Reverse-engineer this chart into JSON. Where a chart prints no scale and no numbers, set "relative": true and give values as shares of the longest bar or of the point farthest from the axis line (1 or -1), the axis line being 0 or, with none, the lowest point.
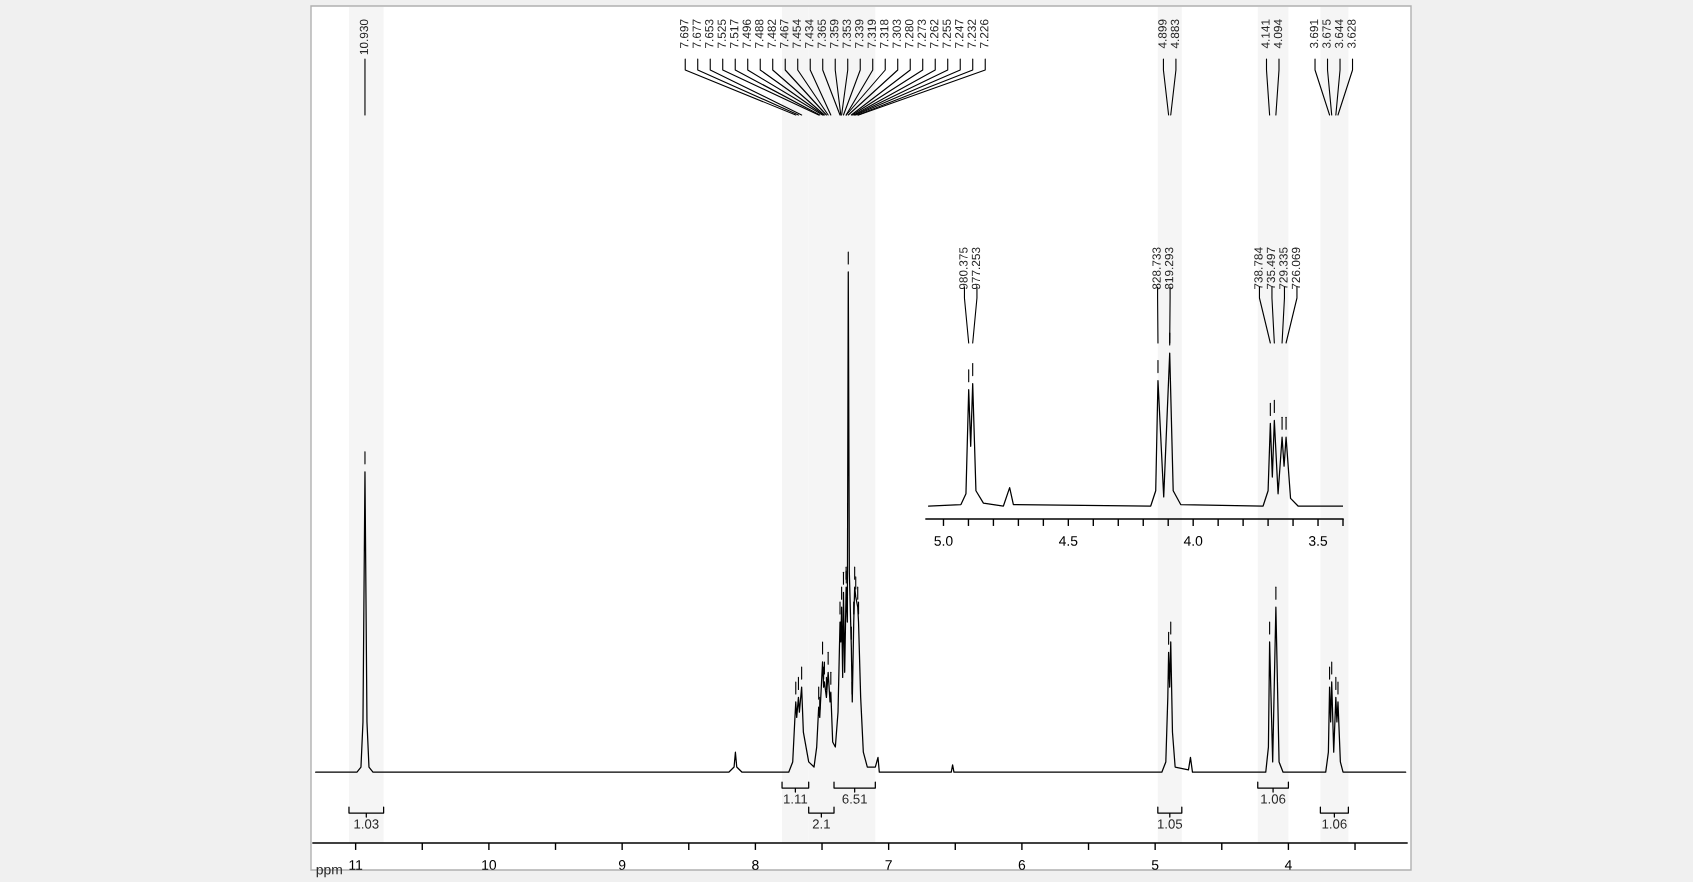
{
  "chart_data": [
    {
      "type": "line",
      "relative": true,
      "xlabel": "ppm",
      "xlim": [
        11.32,
        3.11
      ],
      "xticks": [
        11,
        {
          "value": 10.5,
          "label": null
        },
        10,
        {
          "value": 9.5,
          "label": null
        },
        9,
        {
          "value": 8.5,
          "label": null
        },
        8,
        {
          "value": 7.5,
          "label": null
        },
        7,
        {
          "value": 6.5,
          "label": null
        },
        6,
        {
          "value": 5.5,
          "label": null
        },
        5,
        {
          "value": 4.5,
          "label": null
        },
        4,
        {
          "value": 3.5,
          "label": null
        }
      ],
      "series": [
        {
          "color": "#000000",
          "x": [
            11.3,
            10.99,
            10.96,
            10.945,
            10.93,
            10.915,
            10.9,
            10.87,
            8.2,
            8.16,
            8.15,
            8.14,
            8.1,
            7.75,
            7.72,
            7.705,
            7.697,
            7.69,
            7.677,
            7.67,
            7.653,
            7.64,
            7.6,
            7.56,
            7.54,
            7.525,
            7.517,
            7.496,
            7.488,
            7.482,
            7.467,
            7.454,
            7.44,
            7.434,
            7.42,
            7.4,
            7.38,
            7.365,
            7.359,
            7.353,
            7.345,
            7.339,
            7.33,
            7.319,
            7.31,
            7.303,
            7.295,
            7.28,
            7.273,
            7.262,
            7.255,
            7.247,
            7.232,
            7.226,
            7.21,
            7.19,
            7.16,
            7.1,
            7.08,
            7.07,
            6.53,
            6.52,
            6.51,
            4.95,
            4.92,
            4.905,
            4.899,
            4.891,
            4.883,
            4.87,
            4.85,
            4.75,
            4.735,
            4.72,
            4.17,
            4.15,
            4.141,
            4.118,
            4.094,
            4.07,
            4.04,
            3.72,
            3.7,
            3.691,
            3.683,
            3.675,
            3.66,
            3.644,
            3.636,
            3.628,
            3.61,
            3.59,
            3.12
          ],
          "values": [
            0.124,
            0.124,
            0.133,
            0.212,
            0.65,
            0.212,
            0.133,
            0.124,
            0.124,
            0.133,
            0.159,
            0.133,
            0.124,
            0.124,
            0.142,
            0.212,
            0.247,
            0.22,
            0.255,
            0.229,
            0.273,
            0.194,
            0.142,
            0.133,
            0.168,
            0.238,
            0.22,
            0.317,
            0.273,
            0.282,
            0.255,
            0.299,
            0.247,
            0.264,
            0.177,
            0.168,
            0.229,
            0.387,
            0.352,
            0.413,
            0.29,
            0.439,
            0.299,
            0.448,
            0.387,
            1.0,
            0.474,
            0.343,
            0.247,
            0.387,
            0.448,
            0.431,
            0.413,
            0.387,
            0.255,
            0.159,
            0.133,
            0.133,
            0.15,
            0.124,
            0.124,
            0.137,
            0.124,
            0.124,
            0.142,
            0.255,
            0.334,
            0.273,
            0.352,
            0.194,
            0.133,
            0.128,
            0.15,
            0.124,
            0.124,
            0.168,
            0.352,
            0.142,
            0.413,
            0.142,
            0.124,
            0.124,
            0.159,
            0.273,
            0.212,
            0.282,
            0.159,
            0.255,
            0.212,
            0.247,
            0.142,
            0.124,
            0.124
          ]
        }
      ],
      "annotations": [
        {
          "text": "10.930",
          "x": 10.93
        },
        {
          "text": "7.697",
          "x": 7.697
        },
        {
          "text": "7.677",
          "x": 7.677
        },
        {
          "text": "7.653",
          "x": 7.653
        },
        {
          "text": "7.525",
          "x": 7.525
        },
        {
          "text": "7.517",
          "x": 7.517
        },
        {
          "text": "7.496",
          "x": 7.496
        },
        {
          "text": "7.488",
          "x": 7.488
        },
        {
          "text": "7.482",
          "x": 7.482
        },
        {
          "text": "7.467",
          "x": 7.467
        },
        {
          "text": "7.454",
          "x": 7.454
        },
        {
          "text": "7.434",
          "x": 7.434
        },
        {
          "text": "7.365",
          "x": 7.365
        },
        {
          "text": "7.359",
          "x": 7.359
        },
        {
          "text": "7.353",
          "x": 7.353
        },
        {
          "text": "7.339",
          "x": 7.339
        },
        {
          "text": "7.319",
          "x": 7.319
        },
        {
          "text": "7.318",
          "x": 7.318
        },
        {
          "text": "7.303",
          "x": 7.303
        },
        {
          "text": "7.280",
          "x": 7.28
        },
        {
          "text": "7.273",
          "x": 7.273
        },
        {
          "text": "7.262",
          "x": 7.262
        },
        {
          "text": "7.255",
          "x": 7.255
        },
        {
          "text": "7.247",
          "x": 7.247
        },
        {
          "text": "7.232",
          "x": 7.232
        },
        {
          "text": "7.226",
          "x": 7.226
        },
        {
          "text": "4.899",
          "x": 4.899
        },
        {
          "text": "4.883",
          "x": 4.883
        },
        {
          "text": "4.141",
          "x": 4.141
        },
        {
          "text": "4.094",
          "x": 4.094
        },
        {
          "text": "3.691",
          "x": 3.691
        },
        {
          "text": "3.675",
          "x": 3.675
        },
        {
          "text": "3.644",
          "x": 3.644
        },
        {
          "text": "3.628",
          "x": 3.628
        }
      ],
      "bands": [
        {
          "axis": "x",
          "from": 11.05,
          "to": 10.79,
          "label": "1.03"
        },
        {
          "axis": "x",
          "from": 7.8,
          "to": 7.6,
          "label": "1.11"
        },
        {
          "axis": "x",
          "from": 7.6,
          "to": 7.41,
          "label": "2.1"
        },
        {
          "axis": "x",
          "from": 7.41,
          "to": 7.1,
          "label": "6.51"
        },
        {
          "axis": "x",
          "from": 4.98,
          "to": 4.8,
          "label": "1.05"
        },
        {
          "axis": "x",
          "from": 4.23,
          "to": 4.0,
          "label": "1.06"
        },
        {
          "axis": "x",
          "from": 3.76,
          "to": 3.55,
          "label": "1.06"
        }
      ]
    },
    {
      "type": "line",
      "relative": true,
      "xlim": [
        5.07,
        3.4
      ],
      "xticks": [
        {
          "value": 5.0,
          "label": "5.0"
        },
        {
          "value": 4.9,
          "label": null
        },
        {
          "value": 4.8,
          "label": null
        },
        {
          "value": 4.7,
          "label": null
        },
        {
          "value": 4.6,
          "label": null
        },
        {
          "value": 4.5,
          "label": "4.5"
        },
        {
          "value": 4.4,
          "label": null
        },
        {
          "value": 4.3,
          "label": null
        },
        {
          "value": 4.2,
          "label": null
        },
        {
          "value": 4.1,
          "label": null
        },
        {
          "value": 4.0,
          "label": "4.0"
        },
        {
          "value": 3.9,
          "label": null
        },
        {
          "value": 3.8,
          "label": null
        },
        {
          "value": 3.7,
          "label": null
        },
        {
          "value": 3.6,
          "label": null
        },
        {
          "value": 3.5,
          "label": "3.5"
        },
        {
          "value": 3.4,
          "label": null
        }
      ],
      "series": [
        {
          "color": "#000000",
          "x": [
            5.06,
            4.93,
            4.91,
            4.899,
            4.891,
            4.883,
            4.87,
            4.84,
            4.76,
            4.735,
            4.72,
            4.17,
            4.15,
            4.141,
            4.118,
            4.094,
            4.08,
            4.05,
            3.72,
            3.7,
            3.691,
            3.683,
            3.675,
            3.66,
            3.644,
            3.636,
            3.628,
            3.61,
            3.58,
            3.4
          ],
          "values": [
            0.078,
            0.087,
            0.152,
            0.779,
            0.438,
            0.816,
            0.17,
            0.096,
            0.078,
            0.189,
            0.087,
            0.078,
            0.17,
            0.834,
            0.133,
            1.0,
            0.17,
            0.087,
            0.078,
            0.17,
            0.576,
            0.253,
            0.594,
            0.152,
            0.493,
            0.318,
            0.493,
            0.124,
            0.078,
            0.078
          ]
        }
      ],
      "annotations": [
        {
          "text": "980.375",
          "x": 4.899
        },
        {
          "text": "977.253",
          "x": 4.883
        },
        {
          "text": "828.733",
          "x": 4.141
        },
        {
          "text": "819.293",
          "x": 4.094
        },
        {
          "text": "738.784",
          "x": 3.691
        },
        {
          "text": "735.497",
          "x": 3.675
        },
        {
          "text": "729.335",
          "x": 3.644
        },
        {
          "text": "726.069",
          "x": 3.628
        }
      ]
    }
  ]
}
